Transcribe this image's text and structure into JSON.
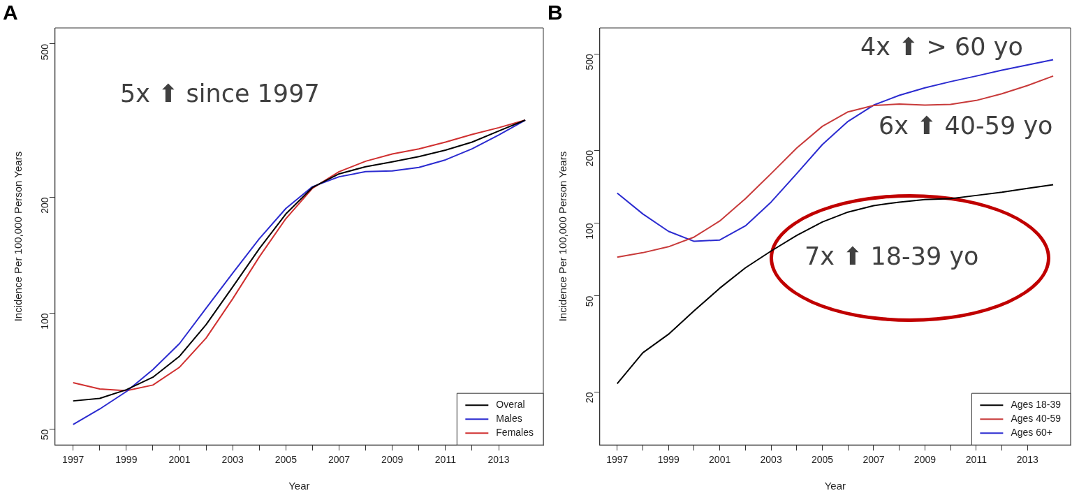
{
  "chart_data": [
    {
      "type": "line",
      "title": "A",
      "xlabel": "Year",
      "ylabel": "Incidence Per 100,000 Person Years",
      "log": "y",
      "marker": "none",
      "legend": "bottom right",
      "x": [
        1997,
        1998,
        1999,
        2000,
        2001,
        2002,
        2003,
        2004,
        2005,
        2006,
        2007,
        2008,
        2009,
        2010,
        2011,
        2012,
        2013,
        2014
      ],
      "xlim": [
        1996.32,
        2014.68
      ],
      "ylim": [
        45.5,
        550
      ],
      "xticks": [
        1997,
        {
          "value": 1998,
          "label": null
        },
        1999,
        {
          "value": 2000,
          "label": null
        },
        2001,
        {
          "value": 2002,
          "label": null
        },
        2003,
        {
          "value": 2004,
          "label": null
        },
        2005,
        {
          "value": 2006,
          "label": null
        },
        2007,
        {
          "value": 2008,
          "label": null
        },
        2009,
        {
          "value": 2010,
          "label": null
        },
        2011,
        {
          "value": 2012,
          "label": null
        },
        2013
      ],
      "yticks": [
        50,
        100,
        200,
        500
      ],
      "annotations": [
        "5x ⬆ since 1997"
      ],
      "series": [
        {
          "name": "Overal",
          "color": "#000000",
          "values": [
            59.2,
            60.1,
            63.3,
            68.2,
            77.3,
            93.4,
            117,
            147,
            181,
            212,
            230,
            240,
            247,
            255,
            265,
            278,
            297,
            317
          ]
        },
        {
          "name": "Males",
          "color": "#2b2bd0",
          "values": [
            51.4,
            56.4,
            62.6,
            71.4,
            83.4,
            103,
            127,
            156,
            187,
            213,
            226,
            233,
            234,
            239,
            250,
            267,
            290,
            317
          ]
        },
        {
          "name": "Females",
          "color": "#d03030",
          "values": [
            66.0,
            63.6,
            62.9,
            65.1,
            72.4,
            86.2,
            109,
            140,
            176,
            211,
            233,
            248,
            259,
            267,
            278,
            291,
            303,
            317
          ]
        }
      ]
    },
    {
      "type": "line",
      "title": "B",
      "xlabel": "Year",
      "ylabel": "Incidence Per 100,000 Person Years",
      "log": "y",
      "marker": "none",
      "legend": "bottom right",
      "x": [
        1997,
        1998,
        1999,
        2000,
        2001,
        2002,
        2003,
        2004,
        2005,
        2006,
        2007,
        2008,
        2009,
        2010,
        2011,
        2012,
        2013,
        2014
      ],
      "xlim": [
        1996.32,
        2014.68
      ],
      "ylim": [
        12.1,
        640
      ],
      "xticks": [
        1997,
        {
          "value": 1998,
          "label": null
        },
        1999,
        {
          "value": 2000,
          "label": null
        },
        2001,
        {
          "value": 2002,
          "label": null
        },
        2003,
        {
          "value": 2004,
          "label": null
        },
        2005,
        {
          "value": 2006,
          "label": null
        },
        2007,
        {
          "value": 2008,
          "label": null
        },
        2009,
        {
          "value": 2010,
          "label": null
        },
        2011,
        {
          "value": 2012,
          "label": null
        },
        2013
      ],
      "yticks": [
        20,
        50,
        100,
        200,
        500
      ],
      "annotations": [
        "4x ⬆ > 60 yo",
        "6x ⬆ 40-59 yo",
        "7x ⬆ 18-39 yo"
      ],
      "series": [
        {
          "name": "Ages 18-39",
          "color": "#000000",
          "values": [
            21.7,
            29.1,
            34.7,
            43.4,
            53.8,
            65.3,
            76.6,
            88.9,
            101,
            111,
            118,
            122,
            125,
            126,
            130,
            134,
            139,
            144
          ]
        },
        {
          "name": "Ages 40-59",
          "color": "#c83a3a",
          "values": [
            72.3,
            75.4,
            79.8,
            87.5,
            102,
            126,
            160,
            204,
            251,
            288,
            306,
            310,
            307,
            309,
            321,
            342,
            370,
            405
          ]
        },
        {
          "name": "Ages 60+",
          "color": "#2b2bd0",
          "values": [
            133,
            109,
            92.4,
            84.0,
            85.1,
            97.3,
            122,
            160,
            211,
            263,
            307,
            337,
            362,
            384,
            405,
            428,
            450,
            473
          ]
        }
      ]
    }
  ]
}
